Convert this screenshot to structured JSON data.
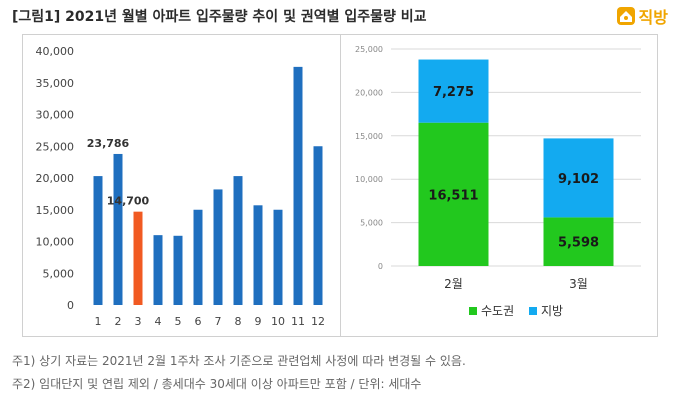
{
  "title": "[그림1] 2021년 월별 아파트 입주물량 추이 및 권역별 입주물량 비교",
  "logo": {
    "text": "직방",
    "icon": "house-icon"
  },
  "colors": {
    "blue": "#1f6fbf",
    "orange": "#f15a22",
    "green": "#22c81e",
    "sky": "#13aaf0"
  },
  "notes": [
    "주1) 상기 자료는 2021년 2월 1주차 조사 기준으로 관련업체 사정에 따라 변경될 수 있음.",
    "주2) 임대단지 및 연립 제외 / 총세대수 30세대 이상 아파트만 포함 / 단위: 세대수"
  ],
  "chart_data": [
    {
      "type": "bar",
      "categories": [
        "1",
        "2",
        "3",
        "4",
        "5",
        "6",
        "7",
        "8",
        "9",
        "10",
        "11",
        "12"
      ],
      "values": [
        20300,
        23786,
        14700,
        11000,
        10900,
        15000,
        18200,
        20300,
        15700,
        15000,
        37500,
        25000
      ],
      "highlight_index": 2,
      "data_labels": [
        {
          "index": 1,
          "text": "23,786"
        },
        {
          "index": 2,
          "text": "14,700"
        }
      ],
      "yticks": [
        "0",
        "5,000",
        "10,000",
        "15,000",
        "20,000",
        "25,000",
        "30,000",
        "35,000",
        "40,000"
      ],
      "ylim": [
        0,
        40000
      ],
      "grid": false
    },
    {
      "type": "bar",
      "stacked": true,
      "categories": [
        "2월",
        "3월"
      ],
      "series": [
        {
          "name": "수도권",
          "values": [
            16511,
            5598
          ],
          "labels": [
            "16,511",
            "5,598"
          ]
        },
        {
          "name": "지방",
          "values": [
            7275,
            9102
          ],
          "labels": [
            "7,275",
            "9,102"
          ]
        }
      ],
      "yticks": [
        "0",
        "5,000",
        "10,000",
        "15,000",
        "20,000",
        "25,000"
      ],
      "ylim": [
        0,
        25000
      ],
      "grid": true,
      "legend": "bottom"
    }
  ]
}
